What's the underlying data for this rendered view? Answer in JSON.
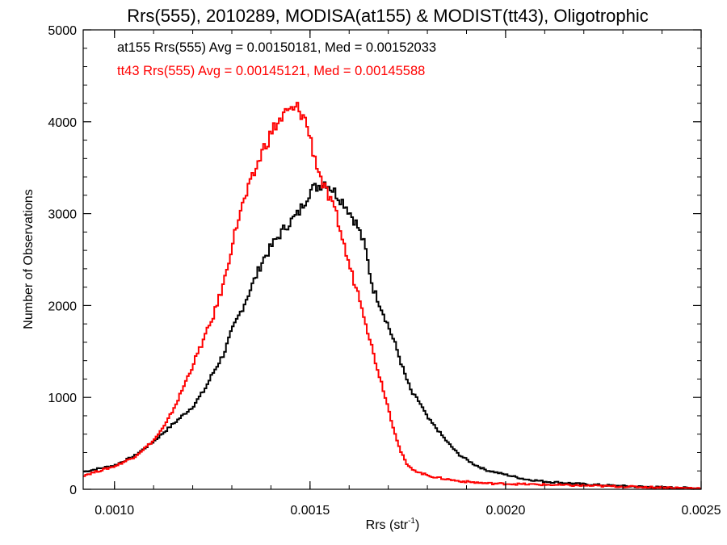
{
  "chart_data": {
    "type": "line",
    "step": true,
    "title": "Rrs(555), 2010289, MODISA(at155) & MODIST(tt43), Oligotrophic",
    "xlabel": "Rrs (str",
    "xlabel_sup": "-1",
    "xlabel_close": ")",
    "ylabel": "Number of Observations",
    "xlim": [
      0.00092,
      0.0025
    ],
    "ylim": [
      0,
      5000
    ],
    "grid": false,
    "x_ticks": [
      {
        "value": 0.001,
        "label": "0.0010"
      },
      {
        "value": 0.0015,
        "label": "0.0015"
      },
      {
        "value": 0.002,
        "label": "0.0020"
      },
      {
        "value": 0.0025,
        "label": "0.0025"
      }
    ],
    "y_ticks": [
      {
        "value": 0,
        "label": "0"
      },
      {
        "value": 1000,
        "label": "1000"
      },
      {
        "value": 2000,
        "label": "2000"
      },
      {
        "value": 3000,
        "label": "3000"
      },
      {
        "value": 4000,
        "label": "4000"
      },
      {
        "value": 5000,
        "label": "5000"
      }
    ],
    "legend": [
      {
        "text": "at155 Rrs(555) Avg = 0.00150181, Med = 0.00152033",
        "color": "#000000"
      },
      {
        "text": "tt43 Rrs(555) Avg = 0.00145121, Med = 0.00145588",
        "color": "#ff0000"
      }
    ],
    "series": [
      {
        "color": "#000000",
        "bin_width": 5e-06,
        "points": [
          [
            0.00092,
            190
          ],
          [
            0.001,
            260
          ],
          [
            0.00105,
            360
          ],
          [
            0.0011,
            520
          ],
          [
            0.00115,
            710
          ],
          [
            0.0012,
            900
          ],
          [
            0.00123,
            1080
          ],
          [
            0.00125,
            1250
          ],
          [
            0.00128,
            1480
          ],
          [
            0.0013,
            1720
          ],
          [
            0.00133,
            2000
          ],
          [
            0.00135,
            2200
          ],
          [
            0.00138,
            2500
          ],
          [
            0.00141,
            2700
          ],
          [
            0.00144,
            2870
          ],
          [
            0.00147,
            3000
          ],
          [
            0.0015,
            3250
          ],
          [
            0.00152,
            3300
          ],
          [
            0.00154,
            3350
          ],
          [
            0.00156,
            3250
          ],
          [
            0.00159,
            3100
          ],
          [
            0.00162,
            2880
          ],
          [
            0.00164,
            2650
          ],
          [
            0.00166,
            2200
          ],
          [
            0.00168,
            2000
          ],
          [
            0.0017,
            1780
          ],
          [
            0.00172,
            1550
          ],
          [
            0.00174,
            1280
          ],
          [
            0.00176,
            1050
          ],
          [
            0.00178,
            950
          ],
          [
            0.0018,
            780
          ],
          [
            0.00182,
            680
          ],
          [
            0.00185,
            520
          ],
          [
            0.00188,
            380
          ],
          [
            0.00192,
            270
          ],
          [
            0.00195,
            210
          ],
          [
            0.002,
            160
          ],
          [
            0.00205,
            110
          ],
          [
            0.0021,
            85
          ],
          [
            0.0022,
            55
          ],
          [
            0.0023,
            35
          ],
          [
            0.0024,
            20
          ],
          [
            0.0025,
            10
          ]
        ]
      },
      {
        "color": "#ff0000",
        "bin_width": 5e-06,
        "points": [
          [
            0.00092,
            150
          ],
          [
            0.001,
            250
          ],
          [
            0.00105,
            350
          ],
          [
            0.0011,
            530
          ],
          [
            0.00113,
            700
          ],
          [
            0.00116,
            950
          ],
          [
            0.00119,
            1250
          ],
          [
            0.00122,
            1550
          ],
          [
            0.00125,
            1850
          ],
          [
            0.00128,
            2250
          ],
          [
            0.0013,
            2650
          ],
          [
            0.00132,
            3000
          ],
          [
            0.00135,
            3350
          ],
          [
            0.00138,
            3700
          ],
          [
            0.00141,
            3950
          ],
          [
            0.00144,
            4100
          ],
          [
            0.00147,
            4150
          ],
          [
            0.00149,
            4000
          ],
          [
            0.00151,
            3650
          ],
          [
            0.00153,
            3350
          ],
          [
            0.00155,
            3150
          ],
          [
            0.00157,
            2950
          ],
          [
            0.00159,
            2600
          ],
          [
            0.00161,
            2300
          ],
          [
            0.00163,
            2050
          ],
          [
            0.00165,
            1680
          ],
          [
            0.00167,
            1350
          ],
          [
            0.00169,
            1050
          ],
          [
            0.00171,
            720
          ],
          [
            0.00173,
            430
          ],
          [
            0.00175,
            250
          ],
          [
            0.00178,
            180
          ],
          [
            0.00182,
            130
          ],
          [
            0.00188,
            90
          ],
          [
            0.00195,
            65
          ],
          [
            0.00205,
            55
          ],
          [
            0.00215,
            45
          ],
          [
            0.00225,
            35
          ],
          [
            0.00235,
            25
          ],
          [
            0.00245,
            15
          ],
          [
            0.0025,
            10
          ]
        ]
      }
    ]
  }
}
